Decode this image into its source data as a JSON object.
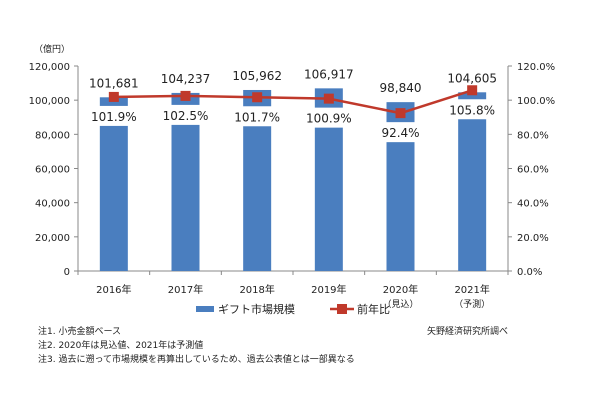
{
  "chart_data": {
    "type": "bar+line",
    "categories": [
      "2016年",
      "2017年",
      "2018年",
      "2019年",
      "2020年",
      "2021年"
    ],
    "category_sublabels": [
      "",
      "",
      "",
      "",
      "（見込）",
      "（予測）"
    ],
    "y_unit_label": "（億円）",
    "ylim": [
      0,
      120000
    ],
    "yticks": [
      "0",
      "20,000",
      "40,000",
      "60,000",
      "80,000",
      "100,000",
      "120,000"
    ],
    "y2lim": [
      0,
      120
    ],
    "y2ticks": [
      "0.0%",
      "20.0%",
      "40.0%",
      "60.0%",
      "80.0%",
      "100.0%",
      "120.0%"
    ],
    "series": [
      {
        "name": "ギフト市場規模",
        "type": "bar",
        "color": "#4a7ebf",
        "values": [
          101681,
          104237,
          105962,
          106917,
          98840,
          104605
        ],
        "labels": [
          "101,681",
          "104,237",
          "105,962",
          "106,917",
          "98,840",
          "104,605"
        ]
      },
      {
        "name": "前年比",
        "type": "line",
        "axis": "right",
        "color": "#c0392b",
        "values": [
          101.9,
          102.5,
          101.7,
          100.9,
          92.4,
          105.8
        ],
        "labels": [
          "101.9%",
          "102.5%",
          "101.7%",
          "100.9%",
          "92.4%",
          "105.8%"
        ]
      }
    ],
    "legend_position": "bottom",
    "grid": false
  },
  "notes": [
    "注1. 小売金額ベース",
    "注2. 2020年は見込値、2021年は予測値",
    "注3. 過去に遡って市場規模を再算出しているため、過去公表値とは一部異なる"
  ],
  "source": "矢野経済研究所調べ"
}
